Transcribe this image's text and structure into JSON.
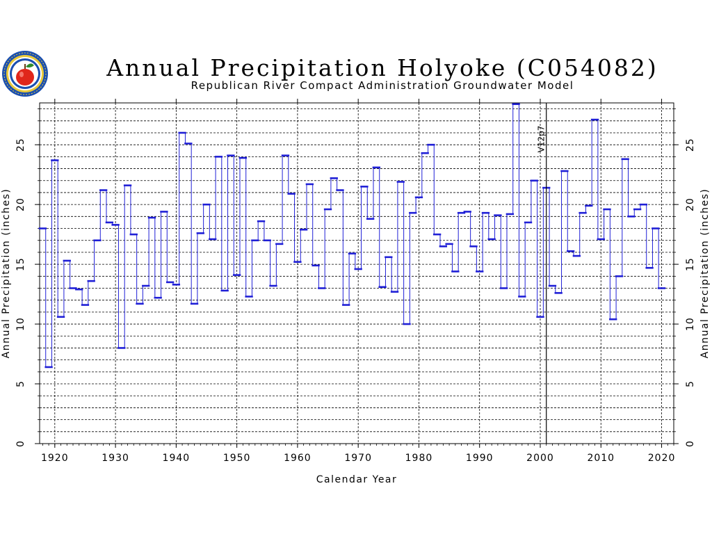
{
  "title": "Annual Precipitation Holyoke (C054082)",
  "subtitle": "Republican River Compact Administration Groundwater Model",
  "logo": {
    "icon": "apple-seal-icon",
    "colors": {
      "ring": "#1a4fb0",
      "gold": "#e8c93c",
      "apple": "#e0261b",
      "leaf": "#2e8b2e"
    }
  },
  "colors": {
    "series": "#1f1fd6",
    "grid": "#000000",
    "background": "#ffffff"
  },
  "chart_data": {
    "type": "line",
    "style": "step",
    "title": "Annual Precipitation Holyoke (C054082)",
    "xlabel": "Calendar Year",
    "ylabel": "Annual Precipitation (inches)",
    "y2label": "Annual Precipitation (inches)",
    "xlim": [
      1917.5,
      2022
    ],
    "ylim": [
      0,
      28.5
    ],
    "xticks": [
      1920,
      1930,
      1940,
      1950,
      1960,
      1970,
      1980,
      1990,
      2000,
      2010,
      2020
    ],
    "yticks": [
      0,
      5,
      10,
      15,
      20,
      25
    ],
    "y_minor_step": 1,
    "grid": true,
    "marker": {
      "x": 2001,
      "label": "V12p7"
    },
    "highlight_color": "#1f1fd6",
    "series": [
      {
        "x": [
          1918,
          1919,
          1920,
          1921,
          1922,
          1923,
          1924,
          1925,
          1926,
          1927,
          1928,
          1929,
          1930,
          1931,
          1932,
          1933,
          1934,
          1935,
          1936,
          1937,
          1938,
          1939,
          1940,
          1941,
          1942,
          1943,
          1944,
          1945,
          1946,
          1947,
          1948,
          1949,
          1950,
          1951,
          1952,
          1953,
          1954,
          1955,
          1956,
          1957,
          1958,
          1959,
          1960,
          1961,
          1962,
          1963,
          1964,
          1965,
          1966,
          1967,
          1968,
          1969,
          1970,
          1971,
          1972,
          1973,
          1974,
          1975,
          1976,
          1977,
          1978,
          1979,
          1980,
          1981,
          1982,
          1983,
          1984,
          1985,
          1986,
          1987,
          1988,
          1989,
          1990,
          1991,
          1992,
          1993,
          1994,
          1995,
          1996,
          1997,
          1998,
          1999,
          2000,
          2001,
          2002,
          2003,
          2004,
          2005,
          2006,
          2007,
          2008,
          2009,
          2010,
          2011,
          2012,
          2013,
          2014,
          2015,
          2016,
          2017,
          2018,
          2019,
          2020
        ],
        "y": [
          18.0,
          6.4,
          23.7,
          10.6,
          15.3,
          13.0,
          12.9,
          11.6,
          13.6,
          17.0,
          21.2,
          18.5,
          18.3,
          8.0,
          21.6,
          17.5,
          11.7,
          13.2,
          18.9,
          12.2,
          19.4,
          13.5,
          13.3,
          26.0,
          25.1,
          11.7,
          17.6,
          20.0,
          17.1,
          24.0,
          12.8,
          24.1,
          14.1,
          23.9,
          12.3,
          17.0,
          18.6,
          17.0,
          13.2,
          16.7,
          24.1,
          20.9,
          15.2,
          17.9,
          21.7,
          14.9,
          13.0,
          19.6,
          22.2,
          21.2,
          11.6,
          15.9,
          14.6,
          21.5,
          18.8,
          23.1,
          13.1,
          15.6,
          12.7,
          21.9,
          10.0,
          19.3,
          20.6,
          24.3,
          25.0,
          17.5,
          16.5,
          16.7,
          14.4,
          19.3,
          19.4,
          16.5,
          14.4,
          19.3,
          17.1,
          19.1,
          13.0,
          19.2,
          28.4,
          12.3,
          18.5,
          22.0,
          10.6,
          21.4,
          13.2,
          12.6,
          22.8,
          16.1,
          15.7,
          19.3,
          19.9,
          27.1,
          17.1,
          19.6,
          10.4,
          14.0,
          23.8,
          19.0,
          19.6,
          20.0,
          14.7,
          18.0,
          13.0
        ]
      }
    ]
  }
}
